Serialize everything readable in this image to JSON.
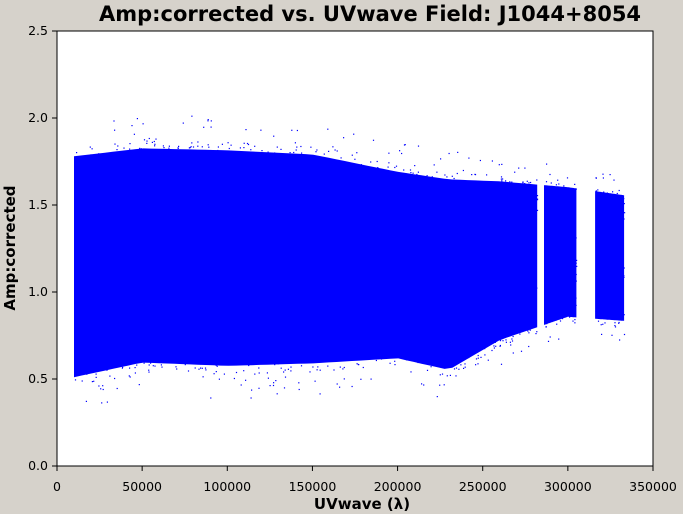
{
  "chart_data": {
    "type": "scatter",
    "title": "Amp:corrected vs. UVwave Field: J1044+8054",
    "xlabel": "UVwave (λ)",
    "ylabel": "Amp:corrected",
    "xlim": [
      0,
      350000
    ],
    "ylim": [
      0,
      2.5
    ],
    "xticks": [
      0,
      50000,
      100000,
      150000,
      200000,
      250000,
      300000,
      350000
    ],
    "yticks": [
      0.0,
      0.5,
      1.0,
      1.5,
      2.0,
      2.5
    ],
    "xtick_labels": [
      "0",
      "50000",
      "100000",
      "150000",
      "200000",
      "250000",
      "300000",
      "350000"
    ],
    "ytick_labels": [
      "0.0",
      "0.5",
      "1.0",
      "1.5",
      "2.0",
      "2.5"
    ],
    "grid": false,
    "point_color": "#0000ff",
    "series": [
      {
        "x_range": [
          10000,
          333000
        ],
        "y_min": [
          0.31,
          0.4,
          0.38,
          0.4,
          0.45,
          0.38,
          0.58,
          0.74,
          0.72
        ],
        "y_max": [
          1.98,
          2.02,
          2.01,
          1.98,
          1.86,
          1.82,
          1.78,
          1.72,
          1.67
        ],
        "envelope_x": [
          10000,
          50000,
          100000,
          150000,
          200000,
          230000,
          260000,
          300000,
          333000
        ],
        "segments": [
          {
            "x": [
              10000,
              282000
            ]
          },
          {
            "x": [
              286000,
              305000
            ]
          },
          {
            "x": [
              316000,
              333000
            ]
          }
        ]
      }
    ]
  }
}
